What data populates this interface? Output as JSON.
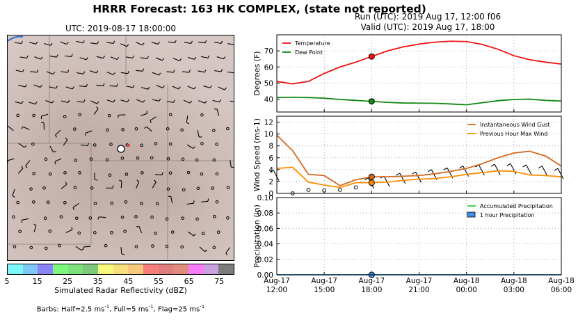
{
  "title": "HRRR Forecast: 163 HK COMPLEX, (state not reported)",
  "run_line": "Run (UTC): 2019 Aug 17, 12:00 f06",
  "valid_line": "Valid (UTC): 2019 Aug 17, 18:00",
  "map": {
    "time_label": "UTC: 2019-08-17 18:00:00",
    "colorbar_label": "Simulated Radar Reflectivity (dBZ)",
    "colorbar_ticks": [
      "5",
      "15",
      "25",
      "35",
      "45",
      "55",
      "65",
      "75"
    ],
    "colorbar_colors": [
      "#7ef7f8",
      "#7ec8f8",
      "#8c82f8",
      "#7cf87c",
      "#7ce07c",
      "#7cc87c",
      "#f8f87c",
      "#f8e07c",
      "#f8c87c",
      "#f87c7c",
      "#e07c7c",
      "#e08c7c",
      "#f87cf8",
      "#c8a0e0",
      "#7c7c7c"
    ],
    "barbs_note": "Barbs: Half=2.5 ms-1, Full=5 ms-1, Flag=25 ms-1"
  },
  "x_ticks": [
    {
      "day": "Aug-17",
      "time": "12:00"
    },
    {
      "day": "Aug-17",
      "time": "15:00"
    },
    {
      "day": "Aug-17",
      "time": "18:00"
    },
    {
      "day": "Aug-17",
      "time": "21:00"
    },
    {
      "day": "Aug-18",
      "time": "00:00"
    },
    {
      "day": "Aug-18",
      "time": "03:00"
    },
    {
      "day": "Aug-18",
      "time": "06:00"
    }
  ],
  "colors": {
    "temperature": "#ee1111",
    "dewpoint": "#118811",
    "gust": "#d2691e",
    "maxwind": "#ff8c00",
    "accum": "#33cc33",
    "hourly": "#3a8fe8"
  },
  "chart_data": [
    {
      "type": "line",
      "x_hours_after_run": [
        0,
        1,
        2,
        3,
        4,
        5,
        6,
        7,
        8,
        9,
        10,
        11,
        12,
        13,
        14,
        15,
        16,
        17,
        18
      ],
      "ylabel": "Degrees (F)",
      "ylim": [
        32,
        80
      ],
      "yticks": [
        40,
        50,
        60,
        70
      ],
      "grid": true,
      "legend": "top-left",
      "marker_hour": 6,
      "series": [
        {
          "name": "Temperature",
          "values": [
            51,
            49.5,
            51,
            56,
            60,
            63,
            66.5,
            70,
            72.5,
            74.2,
            75.4,
            76,
            75.8,
            74,
            71,
            67,
            64.5,
            63,
            61.8
          ]
        },
        {
          "name": "Dew Point",
          "values": [
            41,
            41.2,
            41,
            40.6,
            39.8,
            39.2,
            38.6,
            38,
            37.6,
            37.5,
            37.4,
            37,
            36.5,
            37.8,
            39,
            39.8,
            40,
            39.2,
            38.8
          ]
        }
      ]
    },
    {
      "type": "line",
      "x_hours_after_run": [
        0,
        1,
        2,
        3,
        4,
        5,
        6,
        7,
        8,
        9,
        10,
        11,
        12,
        13,
        14,
        15,
        16,
        17,
        18
      ],
      "ylabel": "Wind Speed (ms-1)",
      "ylim": [
        0,
        13
      ],
      "yticks": [
        0,
        2,
        4,
        6,
        8,
        10,
        12
      ],
      "grid": true,
      "legend": "top-right",
      "marker_hour": 6,
      "series": [
        {
          "name": "Instantaneous Wind Gust",
          "values": [
            9.8,
            7.2,
            3.2,
            3.0,
            1.3,
            2.3,
            2.8,
            2.8,
            2.9,
            3.0,
            3.3,
            3.7,
            4.2,
            5.0,
            6.0,
            6.8,
            7.1,
            6.3,
            4.6
          ]
        },
        {
          "name": "Previous Hour Max Wind",
          "values": [
            4.2,
            4.4,
            1.9,
            1.4,
            1.0,
            1.8,
            1.8,
            1.9,
            2.2,
            2.4,
            2.5,
            2.8,
            3.2,
            3.5,
            3.8,
            3.7,
            3.1,
            3.0,
            2.8
          ]
        }
      ],
      "barbs": {
        "speed": [
          2.5,
          0,
          0.6,
          0.5,
          0.6,
          1.0,
          1.2,
          1.5,
          2.0,
          2.2,
          2.6,
          2.9,
          3.2,
          3.4,
          3.5,
          3.6,
          3.4,
          3.2,
          2.8
        ]
      }
    },
    {
      "type": "line",
      "x_hours_after_run": [
        0,
        1,
        2,
        3,
        4,
        5,
        6,
        7,
        8,
        9,
        10,
        11,
        12,
        13,
        14,
        15,
        16,
        17,
        18
      ],
      "ylabel": "Precipitation (in)",
      "ylim": [
        0,
        0.1
      ],
      "yticks": [
        "0.00",
        "0.02",
        "0.04",
        "0.06",
        "0.08",
        "0.10"
      ],
      "grid": true,
      "legend": "top-right",
      "marker_hour": 6,
      "series": [
        {
          "name": "Accumulated Precipitation",
          "values": [
            0,
            0,
            0,
            0,
            0,
            0,
            0,
            0,
            0,
            0,
            0,
            0,
            0,
            0,
            0,
            0,
            0,
            0,
            0
          ]
        },
        {
          "name": "1 hour Precipitation",
          "values": [
            0,
            0,
            0,
            0,
            0,
            0,
            0,
            0,
            0,
            0,
            0,
            0,
            0,
            0,
            0,
            0,
            0,
            0,
            0
          ]
        }
      ]
    }
  ]
}
